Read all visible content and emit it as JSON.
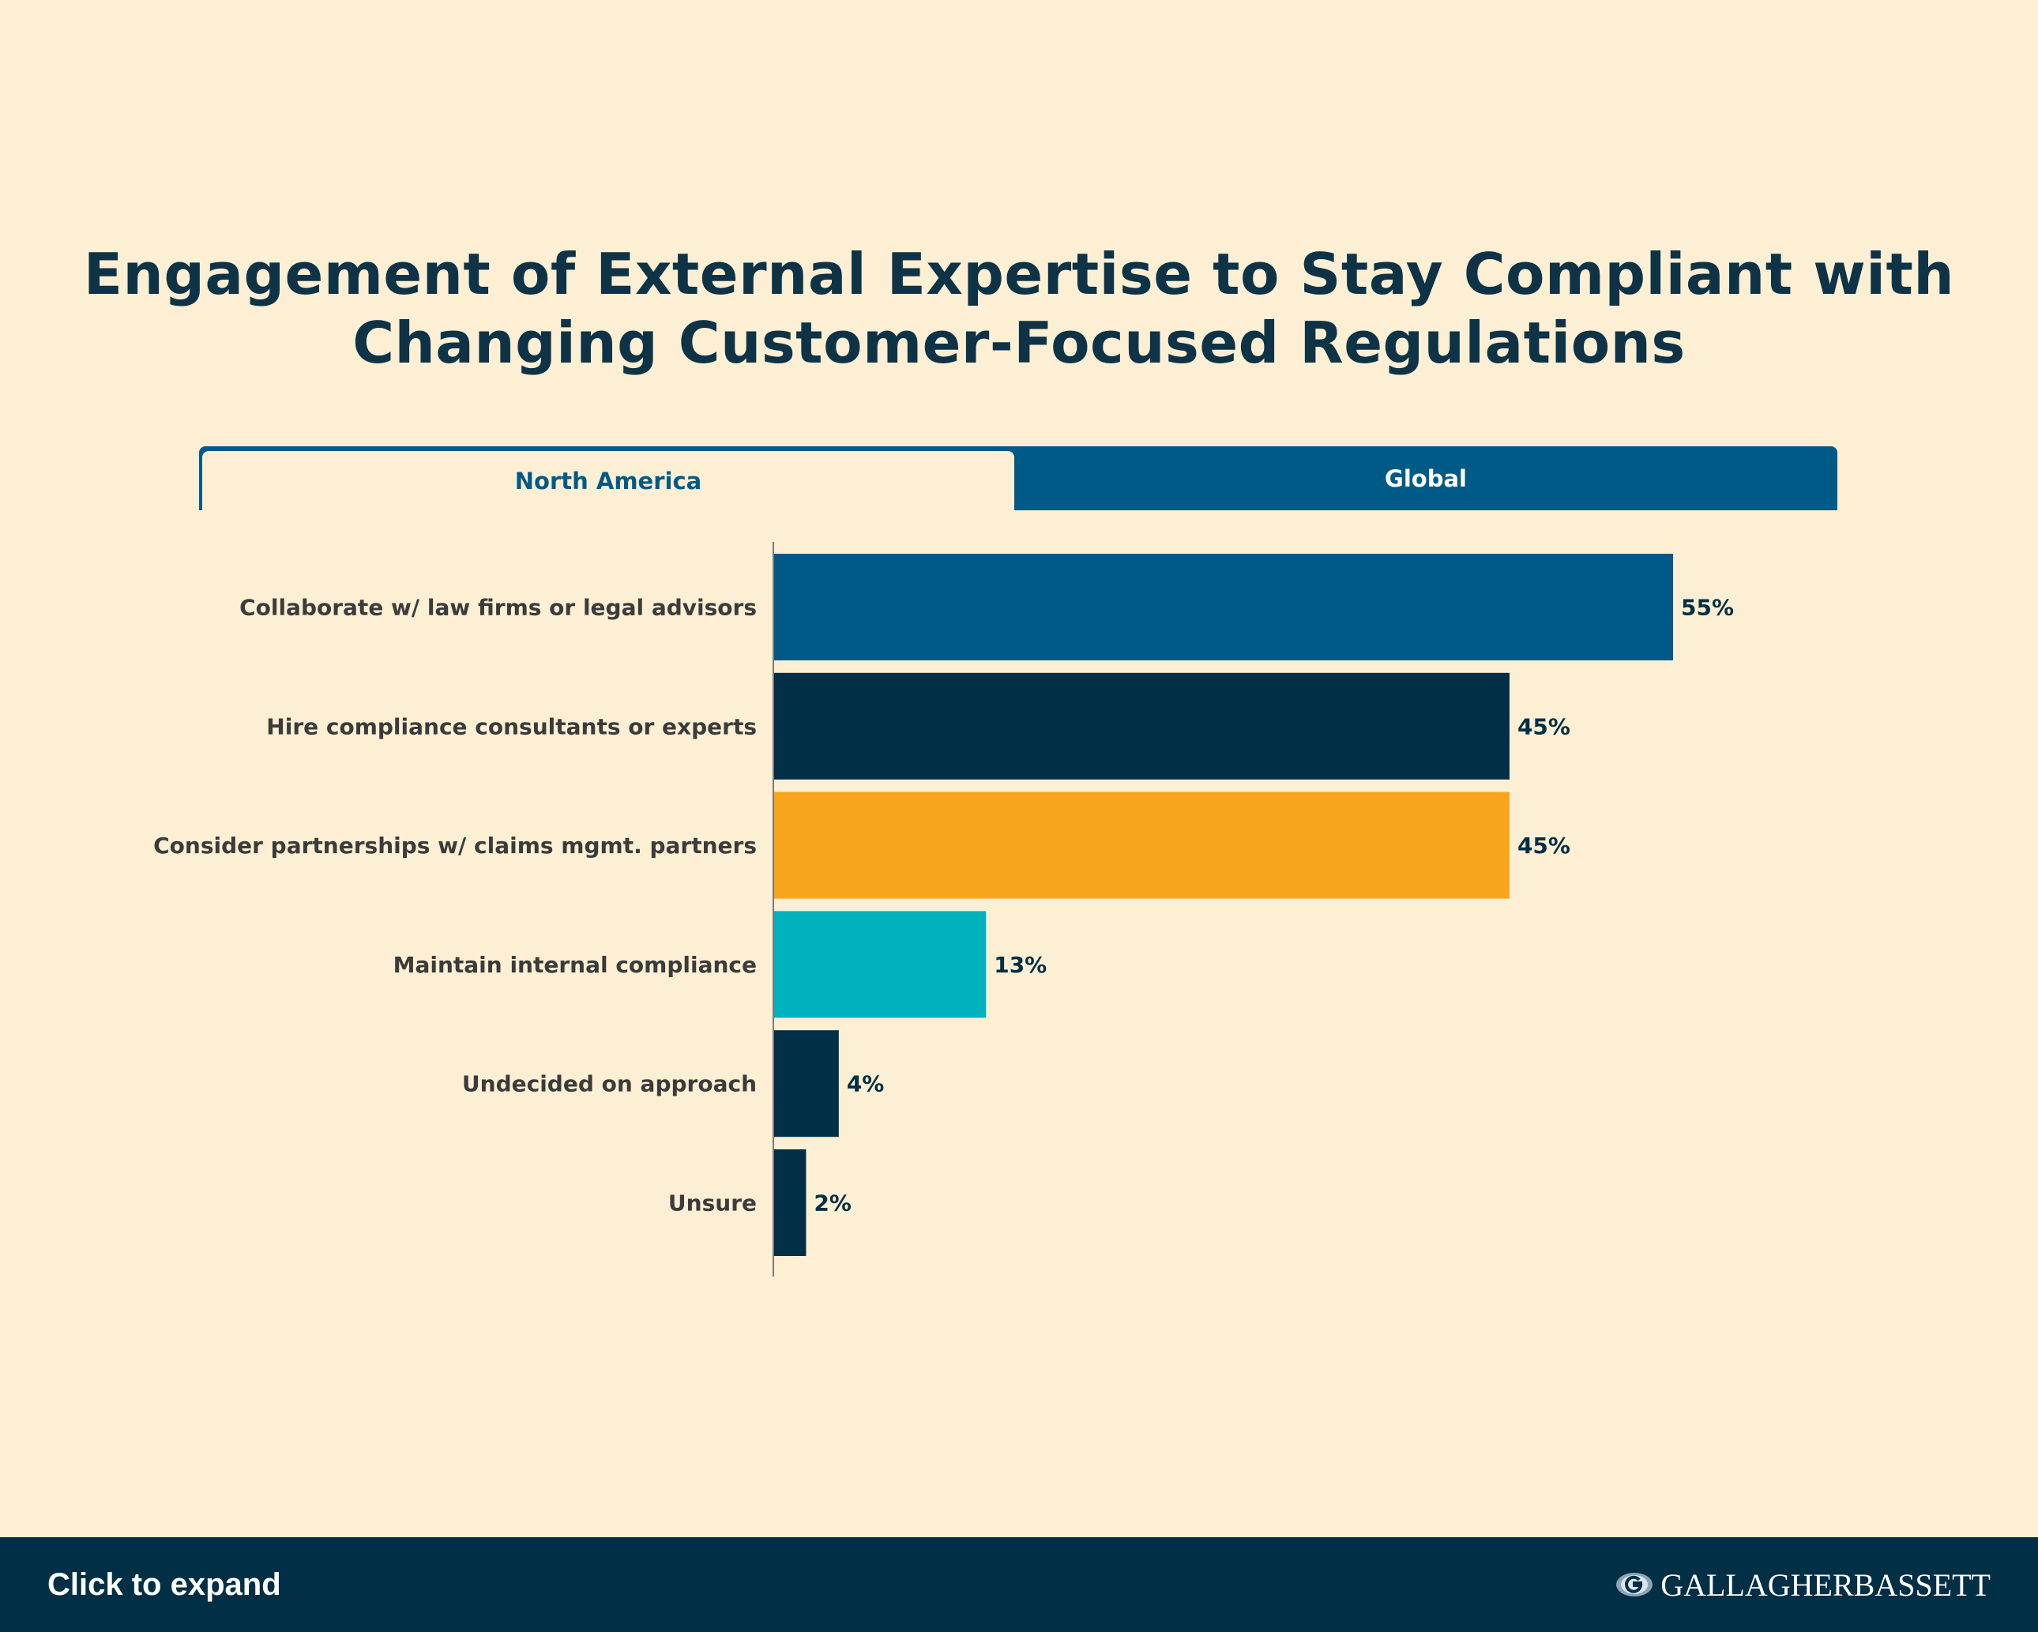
{
  "title": {
    "line1": "Engagement of External Expertise to Stay Compliant with",
    "line2": "Changing Customer-Focused Regulations"
  },
  "tabs": [
    {
      "label": "North America",
      "active": true
    },
    {
      "label": "Global",
      "active": false
    }
  ],
  "colors": {
    "background": "#FDEFD3",
    "blue": "#005A87",
    "navy": "#012F45",
    "orange": "#F7A51B",
    "teal": "#00B1BE",
    "label": "#3B3B3B"
  },
  "chart_data": {
    "type": "bar",
    "orientation": "horizontal",
    "categories": [
      "Collaborate w/ law firms or legal advisors",
      "Hire compliance consultants or experts",
      "Consider partnerships w/ claims mgmt. partners",
      "Maintain internal compliance",
      "Undecided on approach",
      "Unsure"
    ],
    "values": [
      55,
      45,
      45,
      13,
      4,
      2
    ],
    "value_labels": [
      "55%",
      "45%",
      "45%",
      "13%",
      "4%",
      "2%"
    ],
    "bar_colors": [
      "#005A87",
      "#012F45",
      "#F7A51B",
      "#00B1BE",
      "#012F45",
      "#012F45"
    ],
    "unit": "%",
    "xlim": [
      0,
      100
    ],
    "grid": false,
    "legend": "none"
  },
  "footer": {
    "expand_label": "Click to expand",
    "brand_name": "GALLAGHERBASSETT",
    "logo_icon": "gallagher-globe-logo"
  }
}
